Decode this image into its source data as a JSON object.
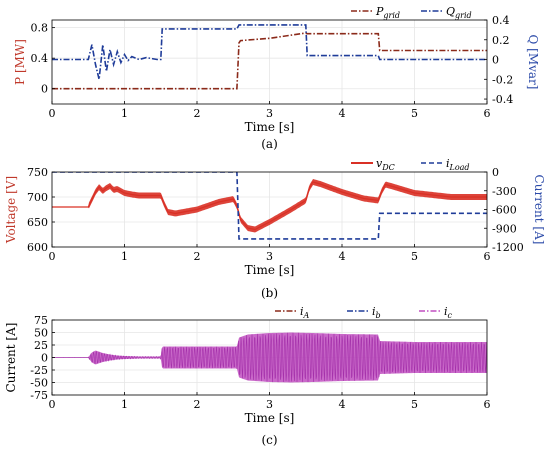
{
  "chart_data": [
    {
      "id": "a",
      "type": "line",
      "caption": "(a)",
      "xlabel": "Time [s]",
      "xlim": [
        0,
        6
      ],
      "xticks": [
        0,
        1,
        2,
        3,
        4,
        5,
        6
      ],
      "ylabel_left": "P [MW]",
      "ylim_left": [
        -0.2,
        0.9
      ],
      "yticks_left": [
        0,
        0.4,
        0.8
      ],
      "ytick_labels_left": [
        "0",
        "0.4",
        "0.8"
      ],
      "ylabel_right": "Q [Mvar]",
      "ylim_right": [
        -0.45,
        0.4
      ],
      "yticks_right": [
        -0.4,
        -0.2,
        0,
        0.2,
        0.4
      ],
      "ytick_labels_right": [
        "-0.4",
        "-0.2",
        "0",
        "0.2",
        "0.4"
      ],
      "grid": true,
      "legend_position": "top-right",
      "colors": {
        "left": "#c0392b",
        "right": "#2b4aa8"
      },
      "series": [
        {
          "name": "P_grid",
          "label_main": "P",
          "label_sub": "grid",
          "axis": "left",
          "style": "dashdot",
          "color": "#8b2a1a",
          "x": [
            0,
            2.55,
            2.58,
            2.6,
            3.0,
            3.5,
            3.52,
            4.5,
            4.52,
            6.0
          ],
          "y": [
            0.0,
            0.0,
            0.6,
            0.63,
            0.66,
            0.73,
            0.72,
            0.72,
            0.5,
            0.5
          ]
        },
        {
          "name": "Q_grid",
          "label_main": "Q",
          "label_sub": "grid",
          "axis": "right",
          "style": "dashdot",
          "color": "#1f3c99",
          "x": [
            0,
            0.5,
            0.55,
            0.6,
            0.65,
            0.7,
            0.75,
            0.8,
            0.85,
            0.9,
            0.95,
            1.0,
            1.05,
            1.1,
            1.2,
            1.3,
            1.45,
            1.5,
            1.52,
            2.55,
            2.58,
            3.5,
            3.52,
            4.5,
            4.52,
            6.0
          ],
          "y": [
            0.0,
            0.0,
            0.15,
            -0.05,
            -0.2,
            0.15,
            -0.12,
            0.1,
            -0.05,
            0.08,
            -0.03,
            0.05,
            -0.01,
            0.03,
            0.0,
            0.02,
            0.0,
            0.0,
            0.31,
            0.31,
            0.35,
            0.35,
            0.04,
            0.04,
            0.0,
            0.0
          ]
        }
      ]
    },
    {
      "id": "b",
      "type": "line",
      "caption": "(b)",
      "xlabel": "Time [s]",
      "xlim": [
        0,
        6
      ],
      "xticks": [
        0,
        1,
        2,
        3,
        4,
        5,
        6
      ],
      "ylabel_left": "Voltage [V]",
      "ylim_left": [
        600,
        750
      ],
      "yticks_left": [
        600,
        650,
        700,
        750
      ],
      "ytick_labels_left": [
        "600",
        "650",
        "700",
        "750"
      ],
      "ylabel_right": "Current [A]",
      "ylim_right": [
        -1200,
        0
      ],
      "yticks_right": [
        0,
        -300,
        -600,
        -900,
        -1200
      ],
      "ytick_labels_right": [
        "0",
        "-300",
        "-600",
        "-900",
        "-1200"
      ],
      "grid": true,
      "legend_position": "top-right",
      "colors": {
        "left": "#c0392b",
        "right": "#2b4aa8"
      },
      "series": [
        {
          "name": "v_DC",
          "label_main": "v",
          "label_sub": "DC",
          "axis": "left",
          "style": "solid",
          "color": "#d93025",
          "band": 6,
          "x": [
            0,
            0.5,
            0.55,
            0.6,
            0.65,
            0.7,
            0.75,
            0.8,
            0.85,
            0.9,
            0.95,
            1.0,
            1.1,
            1.2,
            1.5,
            1.55,
            1.6,
            1.7,
            2.0,
            2.3,
            2.5,
            2.55,
            2.6,
            2.7,
            2.8,
            3.0,
            3.3,
            3.5,
            3.55,
            3.6,
            3.7,
            4.0,
            4.3,
            4.5,
            4.55,
            4.6,
            4.7,
            5.0,
            5.5,
            6.0
          ],
          "y": [
            680,
            680,
            695,
            710,
            720,
            712,
            718,
            722,
            714,
            716,
            712,
            708,
            705,
            703,
            703,
            685,
            670,
            667,
            675,
            690,
            696,
            682,
            655,
            638,
            635,
            650,
            675,
            693,
            718,
            730,
            726,
            710,
            697,
            693,
            712,
            725,
            721,
            708,
            700,
            700
          ]
        },
        {
          "name": "i_Load",
          "label_main": "i",
          "label_sub": "Load",
          "axis": "right",
          "style": "dashed",
          "color": "#1f3c99",
          "x": [
            0,
            2.55,
            2.58,
            4.5,
            4.52,
            6.0
          ],
          "y": [
            0,
            0,
            -1070,
            -1070,
            -660,
            -660
          ]
        }
      ]
    },
    {
      "id": "c",
      "type": "line",
      "caption": "(c)",
      "xlabel": "Time [s]",
      "xlim": [
        0,
        6
      ],
      "xticks": [
        0,
        1,
        2,
        3,
        4,
        5,
        6
      ],
      "ylabel_left": "Current [A]",
      "ylim_left": [
        -75,
        75
      ],
      "yticks_left": [
        -75,
        -50,
        -25,
        0,
        25,
        50,
        75
      ],
      "ytick_labels_left": [
        "-75",
        "-50",
        "-25",
        "0",
        "25",
        "50",
        "75"
      ],
      "grid": true,
      "legend_position": "top-right",
      "colors": {
        "envelope": "#c04fc0"
      },
      "envelope": {
        "x": [
          0,
          0.5,
          0.55,
          0.6,
          0.7,
          0.8,
          0.9,
          1.0,
          1.2,
          1.5,
          1.52,
          2.55,
          2.58,
          2.7,
          3.0,
          3.3,
          3.6,
          4.0,
          4.5,
          4.52,
          5.0,
          6.0
        ],
        "amp": [
          0.5,
          0.5,
          10,
          14,
          9,
          6,
          4,
          3,
          2,
          2,
          22,
          22,
          40,
          46,
          49,
          50,
          49,
          47,
          46,
          33,
          31,
          31
        ]
      },
      "series": [
        {
          "name": "i_A",
          "label_main": "i",
          "label_sub": "A",
          "style": "dashdot",
          "color": "#8b2a1a"
        },
        {
          "name": "i_b",
          "label_main": "i",
          "label_sub": "b",
          "style": "dashdot",
          "color": "#1f3c99"
        },
        {
          "name": "i_c",
          "label_main": "i",
          "label_sub": "c",
          "style": "dashdot",
          "color": "#c04fc0"
        }
      ]
    }
  ]
}
